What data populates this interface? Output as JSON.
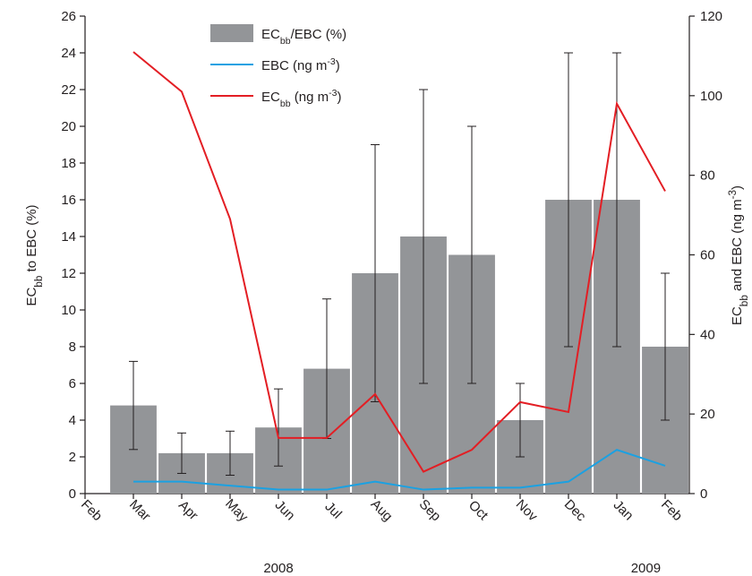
{
  "chart_data": {
    "type": "bar",
    "categories": [
      "Feb",
      "Mar",
      "Apr",
      "May",
      "Jun",
      "Jul",
      "Aug",
      "Sep",
      "Oct",
      "Nov",
      "Dec",
      "Jan",
      "Feb"
    ],
    "annotations": [
      {
        "text": "2008",
        "at": 4
      },
      {
        "text": "2009",
        "at": 11.6
      }
    ],
    "ylabel": [
      {
        "t": "EC"
      },
      {
        "t": "bb",
        "shift": "sub"
      },
      {
        "t": " to EBC (%)"
      }
    ],
    "y2label": [
      {
        "t": "EC"
      },
      {
        "t": "bb",
        "shift": "sub"
      },
      {
        "t": " and EBC (ng m"
      },
      {
        "t": "-3",
        "shift": "super"
      },
      {
        "t": ")"
      }
    ],
    "ylim": [
      0,
      26
    ],
    "yticks": [
      0,
      2,
      4,
      6,
      8,
      10,
      12,
      14,
      16,
      18,
      20,
      22,
      24,
      26
    ],
    "y2lim": [
      0,
      120
    ],
    "y2ticks": [
      0,
      20,
      40,
      60,
      80,
      100,
      120
    ],
    "legend": "top",
    "series": [
      {
        "type": "bar",
        "name": [
          {
            "t": "EC"
          },
          {
            "t": "bb",
            "shift": "sub"
          },
          {
            "t": "/EBC (%)"
          }
        ],
        "color": "#939598",
        "values": [
          null,
          4.8,
          2.2,
          2.2,
          3.6,
          6.8,
          12,
          14,
          13,
          4,
          16,
          16,
          8
        ],
        "errors": [
          null,
          2.4,
          1.1,
          1.2,
          2.1,
          3.8,
          7,
          8,
          7,
          2,
          8,
          8,
          4
        ]
      },
      {
        "type": "line",
        "axis": "y2",
        "name": [
          {
            "t": "EBC (ng m"
          },
          {
            "t": "-3",
            "shift": "super"
          },
          {
            "t": ")"
          }
        ],
        "color": "#1ba1e2",
        "values": [
          null,
          3,
          3,
          2,
          1,
          1,
          3,
          1,
          1.5,
          1.5,
          3,
          11,
          7
        ]
      },
      {
        "type": "line",
        "axis": "y2",
        "name": [
          {
            "t": "EC"
          },
          {
            "t": "bb",
            "shift": "sub"
          },
          {
            "t": " (ng m"
          },
          {
            "t": "-3",
            "shift": "super"
          },
          {
            "t": ")"
          }
        ],
        "color": "#e31e24",
        "values": [
          null,
          111,
          101,
          69,
          14,
          14,
          25,
          5.5,
          11,
          23,
          20.5,
          98,
          76
        ]
      }
    ]
  }
}
